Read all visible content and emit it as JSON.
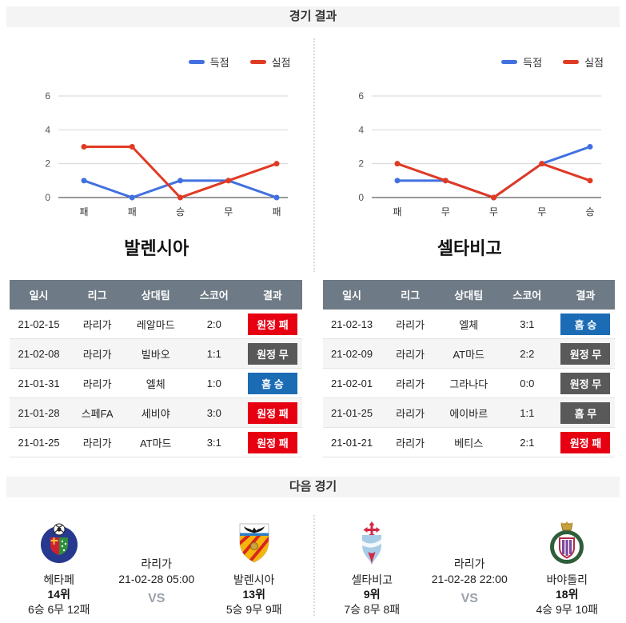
{
  "page": {
    "results_header": "경기 결과",
    "next_header": "다음 경기"
  },
  "colors": {
    "scored_line": "#4170df",
    "conceded_line": "#e03a23",
    "win_badge": "#1b6cb5",
    "draw_badge": "#595959",
    "loss_badge": "#e60012",
    "table_header_bg": "#6e7a85"
  },
  "chart_data": [
    {
      "type": "line",
      "team": "발렌시아",
      "categories": [
        "패",
        "패",
        "승",
        "무",
        "패"
      ],
      "series": [
        {
          "name": "득점",
          "values": [
            1,
            0,
            1,
            1,
            0
          ],
          "color": "#4170df"
        },
        {
          "name": "실점",
          "values": [
            3,
            3,
            0,
            1,
            2
          ],
          "color": "#e03a23"
        }
      ],
      "ylim": [
        0,
        6
      ],
      "yticks": [
        0,
        2,
        4,
        6
      ],
      "legend_position": "top-right",
      "grid": true
    },
    {
      "type": "line",
      "team": "셀타비고",
      "categories": [
        "패",
        "무",
        "무",
        "무",
        "승"
      ],
      "series": [
        {
          "name": "득점",
          "values": [
            1,
            1,
            0,
            2,
            3
          ],
          "color": "#4170df"
        },
        {
          "name": "실점",
          "values": [
            2,
            1,
            0,
            2,
            1
          ],
          "color": "#e03a23"
        }
      ],
      "ylim": [
        0,
        6
      ],
      "yticks": [
        0,
        2,
        4,
        6
      ],
      "legend_position": "top-right",
      "grid": true
    }
  ],
  "tables": [
    {
      "team": "발렌시아",
      "columns": [
        "일시",
        "리그",
        "상대팀",
        "스코어",
        "결과"
      ],
      "rows": [
        {
          "date": "21-02-15",
          "league": "라리가",
          "opponent": "레알마드",
          "score": "2:0",
          "result": "원정 패",
          "result_type": "loss"
        },
        {
          "date": "21-02-08",
          "league": "라리가",
          "opponent": "빌바오",
          "score": "1:1",
          "result": "원정 무",
          "result_type": "draw"
        },
        {
          "date": "21-01-31",
          "league": "라리가",
          "opponent": "엘체",
          "score": "1:0",
          "result": "홈 승",
          "result_type": "win"
        },
        {
          "date": "21-01-28",
          "league": "스페FA",
          "opponent": "세비야",
          "score": "3:0",
          "result": "원정 패",
          "result_type": "loss"
        },
        {
          "date": "21-01-25",
          "league": "라리가",
          "opponent": "AT마드",
          "score": "3:1",
          "result": "원정 패",
          "result_type": "loss"
        }
      ]
    },
    {
      "team": "셀타비고",
      "columns": [
        "일시",
        "리그",
        "상대팀",
        "스코어",
        "결과"
      ],
      "rows": [
        {
          "date": "21-02-13",
          "league": "라리가",
          "opponent": "엘체",
          "score": "3:1",
          "result": "홈 승",
          "result_type": "win"
        },
        {
          "date": "21-02-09",
          "league": "라리가",
          "opponent": "AT마드",
          "score": "2:2",
          "result": "원정 무",
          "result_type": "draw"
        },
        {
          "date": "21-02-01",
          "league": "라리가",
          "opponent": "그라나다",
          "score": "0:0",
          "result": "원정 무",
          "result_type": "draw"
        },
        {
          "date": "21-01-25",
          "league": "라리가",
          "opponent": "에이바르",
          "score": "1:1",
          "result": "홈 무",
          "result_type": "draw"
        },
        {
          "date": "21-01-21",
          "league": "라리가",
          "opponent": "베티스",
          "score": "2:1",
          "result": "원정 패",
          "result_type": "loss"
        }
      ]
    }
  ],
  "next_matches": [
    {
      "league": "라리가",
      "datetime": "21-02-28 05:00",
      "vs_label": "VS",
      "home": {
        "name": "헤타페",
        "rank": "14위",
        "record": "6승 6무 12패",
        "logo_icon": "getafe-crest-icon"
      },
      "away": {
        "name": "발렌시아",
        "rank": "13위",
        "record": "5승 9무 9패",
        "logo_icon": "valencia-crest-icon"
      }
    },
    {
      "league": "라리가",
      "datetime": "21-02-28 22:00",
      "vs_label": "VS",
      "home": {
        "name": "셀타비고",
        "rank": "9위",
        "record": "7승 8무 8패",
        "logo_icon": "celta-crest-icon"
      },
      "away": {
        "name": "바야돌리",
        "rank": "18위",
        "record": "4승 9무 10패",
        "logo_icon": "valladolid-crest-icon"
      }
    }
  ]
}
